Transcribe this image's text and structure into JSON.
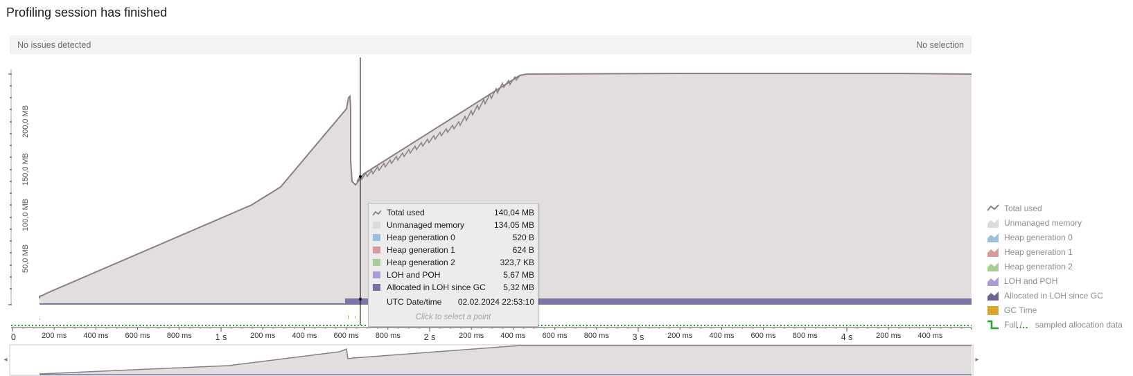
{
  "header": {
    "title": "Profiling session has finished"
  },
  "infobar": {
    "issues": "No issues detected",
    "selection": "No selection"
  },
  "y_axis": {
    "labels": [
      "50,0 MB",
      "100,0 MB",
      "150,0 MB",
      "200,0 MB"
    ]
  },
  "x_axis": {
    "labels": [
      "0",
      "200 ms",
      "400 ms",
      "600 ms",
      "800 ms",
      "1 s",
      "200 ms",
      "400 ms",
      "600 ms",
      "800 ms",
      "2 s",
      "200 ms",
      "400 ms",
      "600 ms",
      "800 ms",
      "3 s",
      "200 ms",
      "400 ms",
      "600 ms",
      "800 ms",
      "4 s",
      "200 ms",
      "400 ms"
    ]
  },
  "tooltip": {
    "rows": [
      {
        "label": "Total used",
        "value": "140,04 MB",
        "swatch": "line",
        "color": "#8a7f80"
      },
      {
        "label": "Unmanaged memory",
        "value": "134,05 MB",
        "swatch": "box",
        "color": "#dedada"
      },
      {
        "label": "Heap generation 0",
        "value": "520 B",
        "swatch": "box",
        "color": "#9cbfe0"
      },
      {
        "label": "Heap generation 1",
        "value": "624 B",
        "swatch": "box",
        "color": "#d99a9a"
      },
      {
        "label": "Heap generation 2",
        "value": "323,7 KB",
        "swatch": "box",
        "color": "#a7cc95"
      },
      {
        "label": "LOH and POH",
        "value": "5,67 MB",
        "swatch": "box",
        "color": "#ad9ad8"
      },
      {
        "label": "Allocated in LOH since GC",
        "value": "5,32 MB",
        "swatch": "box",
        "color": "#7a6f9e"
      },
      {
        "label": "UTC Date/time",
        "value": "02.02.2024 22:53:10",
        "swatch": "none",
        "color": ""
      }
    ],
    "hint": "Click to select a point"
  },
  "legend": {
    "items": [
      {
        "label": "Total used",
        "swatch": "line",
        "color": "#8a7f80"
      },
      {
        "label": "Unmanaged memory",
        "swatch": "area",
        "color": "#dedada"
      },
      {
        "label": "Heap generation 0",
        "swatch": "area",
        "color": "#9cbfe0"
      },
      {
        "label": "Heap generation 1",
        "swatch": "area",
        "color": "#d99a9a"
      },
      {
        "label": "Heap generation 2",
        "swatch": "area",
        "color": "#a7cc95"
      },
      {
        "label": "LOH and POH",
        "swatch": "area",
        "color": "#ad9ad8"
      },
      {
        "label": "Allocated in LOH since GC",
        "swatch": "area",
        "color": "#6e638f"
      },
      {
        "label": "GC Time",
        "swatch": "box",
        "color": "#d9a62e"
      },
      {
        "label": "Full /       sampled allocation data",
        "swatch": "step",
        "color": "#1fa81f"
      }
    ]
  },
  "colors": {
    "area": "#e3dede",
    "line": "#8a7f80",
    "loh": "#7d73a5",
    "cursor": "#000000",
    "dotted": "#1fa81f"
  }
}
